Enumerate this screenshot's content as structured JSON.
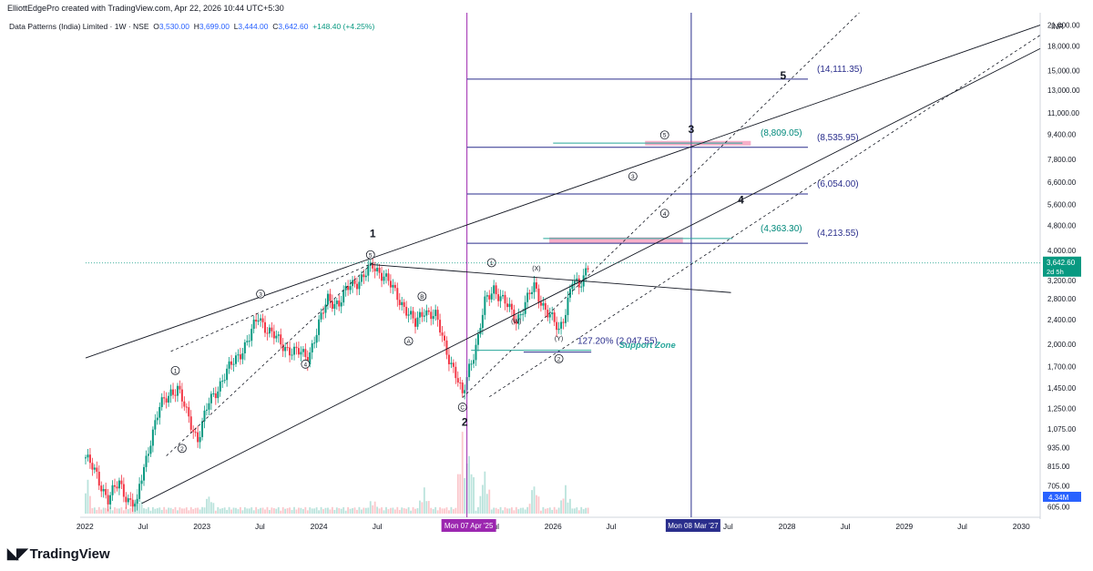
{
  "header": {
    "credit": "ElliottEdgePro created with TradingView.com, Apr 22, 2026 10:44 UTC+5:30",
    "symbol": "Data Patterns (India) Limited · 1W · NSE",
    "o_lbl": "O",
    "o": "3,530.00",
    "h_lbl": "H",
    "h": "3,699.00",
    "l_lbl": "L",
    "l": "3,444.00",
    "c_lbl": "C",
    "c": "3,642.60",
    "change": "+148.40 (+4.25%)"
  },
  "footer": {
    "brand": "TradingView"
  },
  "chart_data": {
    "type": "candlestick",
    "currency": "INR",
    "y_scale": "log",
    "ylim": [
      560,
      23000
    ],
    "y_ticks": [
      605,
      705,
      815,
      935,
      1075,
      1250,
      1450,
      1700,
      2000,
      2400,
      2800,
      3200,
      4000,
      4800,
      5600,
      6600,
      7800,
      9400,
      11000,
      13000,
      15000,
      18000,
      21000
    ],
    "y_tick_labels": [
      "605.00",
      "705.00",
      "815.00",
      "935.00",
      "1,075.00",
      "1,250.00",
      "1,450.00",
      "1,700.00",
      "2,000.00",
      "2,400.00",
      "2,800.00",
      "3,200.00",
      "4,000.00",
      "4,800.00",
      "5,600.00",
      "6,600.00",
      "7,800.00",
      "9,400.00",
      "11,000.00",
      "13,000.00",
      "15,000.00",
      "18,000.00",
      "21,000.00"
    ],
    "x_range": [
      "2022-01-03",
      "2030-03-01"
    ],
    "x_ticks": [
      {
        "date": "2022-01-01",
        "label": "2022"
      },
      {
        "date": "2022-07-01",
        "label": "Jul"
      },
      {
        "date": "2023-01-01",
        "label": "2023"
      },
      {
        "date": "2023-07-01",
        "label": "Jul"
      },
      {
        "date": "2024-01-01",
        "label": "2024"
      },
      {
        "date": "2024-07-01",
        "label": "Jul"
      },
      {
        "date": "2025-07-01",
        "label": "Jul"
      },
      {
        "date": "2026-01-01",
        "label": "2026"
      },
      {
        "date": "2026-07-01",
        "label": "Jul"
      },
      {
        "date": "2027-07-01",
        "label": "Jul"
      },
      {
        "date": "2028-01-01",
        "label": "2028"
      },
      {
        "date": "2028-07-01",
        "label": "Jul"
      },
      {
        "date": "2029-01-01",
        "label": "2029"
      },
      {
        "date": "2029-07-01",
        "label": "Jul"
      },
      {
        "date": "2030-01-01",
        "label": "2030"
      }
    ],
    "x_markers": [
      {
        "date": "2025-04-07",
        "label": "Mon 07 Apr '25",
        "color": "#9c27b0"
      },
      {
        "date": "2027-03-08",
        "label": "Mon 08 Mar '27",
        "color": "#2a2e8c"
      }
    ],
    "last_price": {
      "value": 3642.6,
      "label": "3,642.60",
      "sub": "2d 5h",
      "color": "#089981"
    },
    "volume_badge": {
      "label": "4.34M",
      "color": "#2962ff"
    },
    "price_path": [
      [
        "2022-01-03",
        870
      ],
      [
        "2022-02-07",
        760
      ],
      [
        "2022-03-14",
        640
      ],
      [
        "2022-04-18",
        720
      ],
      [
        "2022-05-16",
        640
      ],
      [
        "2022-06-13",
        605
      ],
      [
        "2022-06-20",
        700
      ],
      [
        "2022-07-25",
        1000
      ],
      [
        "2022-08-22",
        1250
      ],
      [
        "2022-09-26",
        1420
      ],
      [
        "2022-10-17",
        1450
      ],
      [
        "2022-11-14",
        1200
      ],
      [
        "2022-12-19",
        1000
      ],
      [
        "2023-01-23",
        1300
      ],
      [
        "2023-03-06",
        1550
      ],
      [
        "2023-04-17",
        1800
      ],
      [
        "2023-05-29",
        2100
      ],
      [
        "2023-06-26",
        2450
      ],
      [
        "2023-07-24",
        2250
      ],
      [
        "2023-09-04",
        2000
      ],
      [
        "2023-10-16",
        1900
      ],
      [
        "2023-11-27",
        1820
      ],
      [
        "2023-12-25",
        2200
      ],
      [
        "2024-01-29",
        2800
      ],
      [
        "2024-03-04",
        2700
      ],
      [
        "2024-04-08",
        3100
      ],
      [
        "2024-05-20",
        3300
      ],
      [
        "2024-06-17",
        3550
      ],
      [
        "2024-07-22",
        3350
      ],
      [
        "2024-08-26",
        2900
      ],
      [
        "2024-09-30",
        2600
      ],
      [
        "2024-10-28",
        2300
      ],
      [
        "2024-11-25",
        2600
      ],
      [
        "2024-12-30",
        2450
      ],
      [
        "2025-01-27",
        2000
      ],
      [
        "2025-03-03",
        1600
      ],
      [
        "2025-03-24",
        1351
      ],
      [
        "2025-04-14",
        1700
      ],
      [
        "2025-05-12",
        2100
      ],
      [
        "2025-06-02",
        2700
      ],
      [
        "2025-06-30",
        3050
      ],
      [
        "2025-08-04",
        2700
      ],
      [
        "2025-09-08",
        2400
      ],
      [
        "2025-10-06",
        2700
      ],
      [
        "2025-11-03",
        3050
      ],
      [
        "2025-12-08",
        2600
      ],
      [
        "2026-01-19",
        2200
      ],
      [
        "2026-02-09",
        2600
      ],
      [
        "2026-03-02",
        3200
      ],
      [
        "2026-03-23",
        3000
      ],
      [
        "2026-04-20",
        3642.6
      ]
    ],
    "volume_peaks": [
      [
        "2022-01-03",
        0.55
      ],
      [
        "2022-06-13",
        0.3
      ],
      [
        "2023-01-23",
        0.25
      ],
      [
        "2024-06-17",
        0.2
      ],
      [
        "2024-11-25",
        0.32
      ],
      [
        "2025-03-24",
        1.0
      ],
      [
        "2025-04-14",
        0.85
      ],
      [
        "2025-06-02",
        0.55
      ],
      [
        "2025-11-03",
        0.4
      ],
      [
        "2026-02-09",
        0.35
      ]
    ],
    "levels": [
      {
        "price": 14111.35,
        "label": "(14,111.35)",
        "color": "#2a2e8c",
        "from": "2025-04-07"
      },
      {
        "price": 8535.95,
        "label": "(8,535.95)",
        "color": "#2a2e8c",
        "from": "2025-04-07"
      },
      {
        "price": 6054.0,
        "label": "(6,054.00)",
        "color": "#2a2e8c",
        "from": "2025-04-07"
      },
      {
        "price": 4213.55,
        "label": "(4,213.55)",
        "color": "#2a2e8c",
        "from": "2025-04-07"
      }
    ],
    "teal_levels": [
      {
        "price": 8809.05,
        "label": "(8,809.05)",
        "from": "2026-01-01",
        "to": "2027-08-15"
      },
      {
        "price": 4363.3,
        "label": "(4,363.30)",
        "from": "2025-12-01",
        "to": "2027-07-15"
      }
    ],
    "pink_zones": [
      {
        "from": "2026-10-15",
        "to": "2027-09-10",
        "low": 8650,
        "high": 8950
      },
      {
        "from": "2025-12-20",
        "to": "2027-02-10",
        "low": 4220,
        "high": 4400
      }
    ],
    "fib": {
      "label": "127.20% (2,047.55)",
      "price": 2047.55
    },
    "support_zone": {
      "label": "Support  Zone",
      "price": 1990
    },
    "trend_lines": [
      {
        "p1": [
          "2022-06-27",
          620
        ],
        "p2": [
          "2030-05-01",
          19000
        ],
        "style": "solid"
      },
      {
        "p1": [
          "2021-12-27",
          1800
        ],
        "p2": [
          "2030-03-01",
          21000
        ],
        "style": "solid"
      },
      {
        "p1": [
          "2024-06-15",
          3600
        ],
        "p2": [
          "2027-07-10",
          2930
        ],
        "style": "solid"
      },
      {
        "p1": [
          "2022-09-12",
          880
        ],
        "p2": [
          "2024-06-17",
          3650
        ],
        "style": "dashed"
      },
      {
        "p1": [
          "2022-09-26",
          1900
        ],
        "p2": [
          "2024-06-20",
          3650
        ],
        "style": "dashed"
      },
      {
        "p1": [
          "2025-03-24",
          1351
        ],
        "p2": [
          "2028-09-01",
          24000
        ],
        "style": "dashed"
      },
      {
        "p1": [
          "2025-06-16",
          1360
        ],
        "p2": [
          "2030-03-01",
          19500
        ],
        "style": "dashed"
      }
    ],
    "wave_labels": [
      {
        "date": "2024-06-17",
        "price": 4400,
        "text": "1",
        "big": true
      },
      {
        "date": "2025-03-31",
        "price": 1100,
        "text": "2",
        "big": true
      },
      {
        "date": "2027-03-08",
        "price": 9500,
        "text": "3",
        "big": true
      },
      {
        "date": "2027-08-10",
        "price": 5650,
        "text": "4",
        "big": true
      },
      {
        "date": "2027-12-20",
        "price": 14111,
        "text": "5",
        "big": true
      },
      {
        "date": "2022-10-10",
        "price": 1650,
        "text": "1",
        "circle": true
      },
      {
        "date": "2022-10-31",
        "price": 930,
        "text": "2",
        "circle": true
      },
      {
        "date": "2023-07-03",
        "price": 2900,
        "text": "3",
        "circle": true
      },
      {
        "date": "2023-11-20",
        "price": 1730,
        "text": "4",
        "circle": true
      },
      {
        "date": "2024-06-10",
        "price": 3870,
        "text": "5",
        "circle": true
      },
      {
        "date": "2024-10-07",
        "price": 2050,
        "text": "A",
        "circle": true
      },
      {
        "date": "2024-11-18",
        "price": 2850,
        "text": "B",
        "circle": true
      },
      {
        "date": "2025-03-24",
        "price": 1260,
        "text": "C",
        "circle": true
      },
      {
        "date": "2025-06-23",
        "price": 3650,
        "text": "1",
        "circle": true
      },
      {
        "date": "2026-01-19",
        "price": 1800,
        "text": "2",
        "circle": true
      },
      {
        "date": "2026-09-07",
        "price": 6900,
        "text": "3",
        "circle": true
      },
      {
        "date": "2026-12-15",
        "price": 5250,
        "text": "4",
        "circle": true
      },
      {
        "date": "2026-12-15",
        "price": 9350,
        "text": "5",
        "circle": true
      },
      {
        "date": "2025-09-08",
        "price": 2340,
        "text": "(W)",
        "paren": true
      },
      {
        "date": "2025-11-10",
        "price": 3450,
        "text": "(X)",
        "paren": true
      },
      {
        "date": "2026-01-19",
        "price": 2060,
        "text": "(Y)",
        "paren": true
      }
    ]
  }
}
